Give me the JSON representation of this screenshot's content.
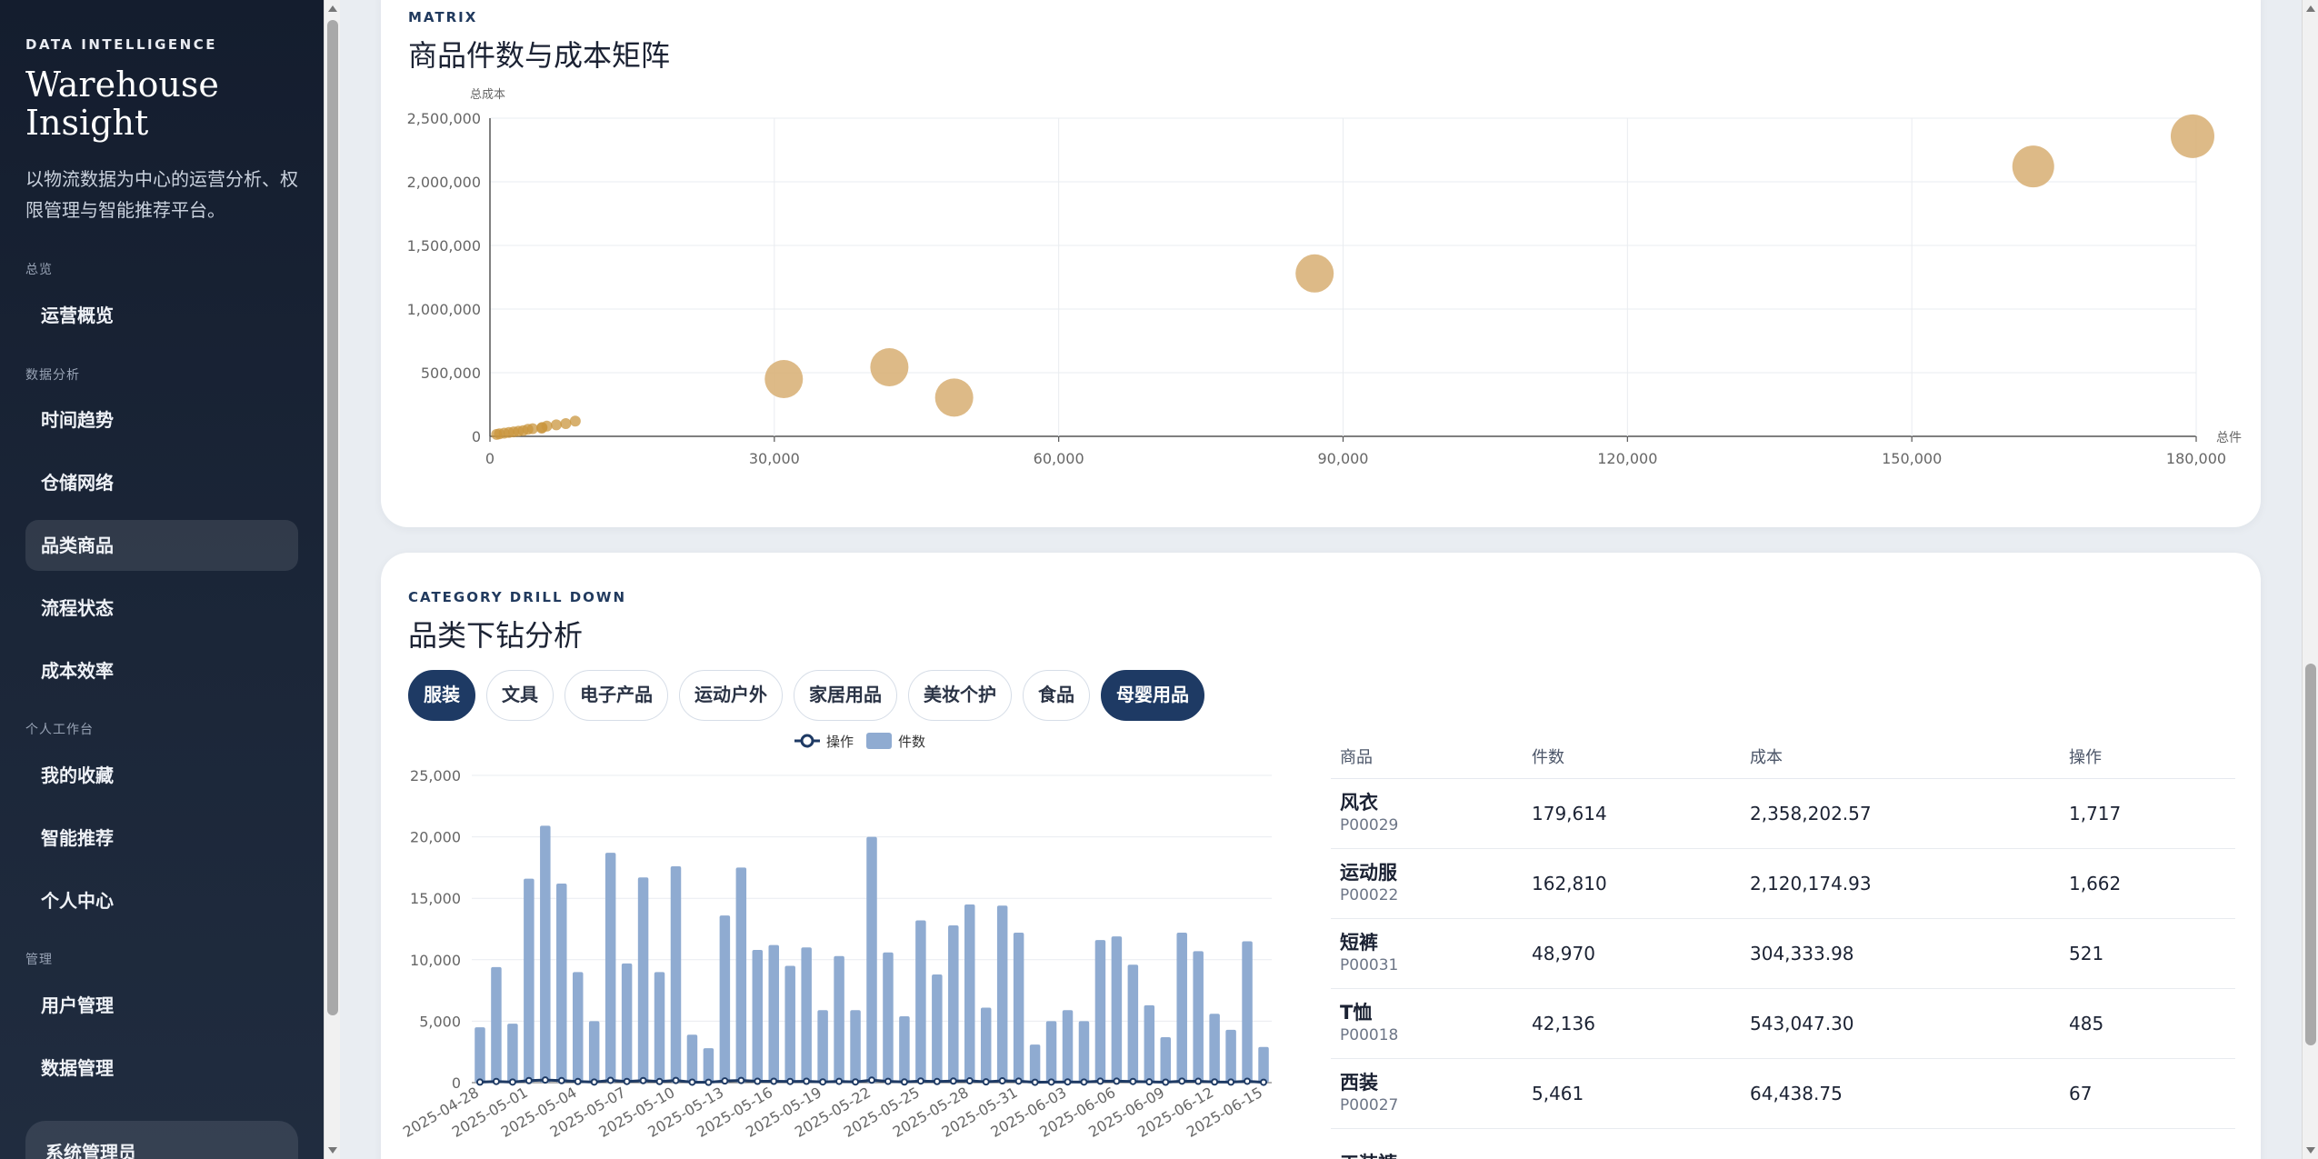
{
  "sidebar": {
    "kicker": "DATA INTELLIGENCE",
    "title": "Warehouse Insight",
    "desc": "以物流数据为中心的运营分析、权限管理与智能推荐平台。",
    "sections": {
      "overview": "总览",
      "analysis": "数据分析",
      "workspace": "个人工作台",
      "admin": "管理"
    },
    "items": {
      "ops": "运营概览",
      "trend": "时间趋势",
      "network": "仓储网络",
      "category": "品类商品",
      "process": "流程状态",
      "cost": "成本效率",
      "favorites": "我的收藏",
      "recommend": "智能推荐",
      "profile": "个人中心",
      "users": "用户管理",
      "data": "数据管理",
      "admin_user": "系统管理员"
    }
  },
  "matrix": {
    "kicker": "MATRIX",
    "title": "商品件数与成本矩阵",
    "y_axis_name": "总成本",
    "x_axis_name": "总件",
    "bubble_color": "#d9b37a"
  },
  "drill": {
    "kicker": "CATEGORY DRILL DOWN",
    "title": "品类下钻分析",
    "chips": [
      "服装",
      "文具",
      "电子产品",
      "运动户外",
      "家居用品",
      "美妆个护",
      "食品",
      "母婴用品"
    ],
    "legend": {
      "line": "操作",
      "bar": "件数"
    },
    "table": {
      "headers": {
        "name": "商品",
        "qty": "件数",
        "cost": "成本",
        "op": "操作"
      },
      "rows": [
        {
          "name": "风衣",
          "code": "P00029",
          "qty": "179,614",
          "cost": "2,358,202.57",
          "op": "1,717"
        },
        {
          "name": "运动服",
          "code": "P00022",
          "qty": "162,810",
          "cost": "2,120,174.93",
          "op": "1,662"
        },
        {
          "name": "短裤",
          "code": "P00031",
          "qty": "48,970",
          "cost": "304,333.98",
          "op": "521"
        },
        {
          "name": "T恤",
          "code": "P00018",
          "qty": "42,136",
          "cost": "543,047.30",
          "op": "485"
        },
        {
          "name": "西装",
          "code": "P00027",
          "qty": "5,461",
          "cost": "64,438.75",
          "op": "67"
        },
        {
          "name": "工装裤",
          "code": "",
          "qty": "",
          "cost": "",
          "op": ""
        }
      ]
    }
  },
  "chart_data": [
    {
      "type": "scatter",
      "title": "商品件数与成本矩阵",
      "xlabel": "总件",
      "ylabel": "总成本",
      "xlim": [
        0,
        180000
      ],
      "ylim": [
        0,
        2500000
      ],
      "x_ticks": [
        "0",
        "30,000",
        "60,000",
        "90,000",
        "120,000",
        "150,000",
        "180,000"
      ],
      "y_ticks": [
        "0",
        "500,000",
        "1,000,000",
        "1,500,000",
        "2,000,000",
        "2,500,000"
      ],
      "grid": true,
      "points": [
        {
          "x": 179614,
          "y": 2358202.57,
          "size": 1
        },
        {
          "x": 162810,
          "y": 2120174.93,
          "size": 0.95
        },
        {
          "x": 87000,
          "y": 1280000,
          "size": 0.85
        },
        {
          "x": 48970,
          "y": 304333.98,
          "size": 0.85
        },
        {
          "x": 42136,
          "y": 543047.3,
          "size": 0.85
        },
        {
          "x": 31000,
          "y": 450000,
          "size": 0.85
        },
        {
          "x": 9000,
          "y": 120000,
          "size": 0.25
        },
        {
          "x": 8000,
          "y": 100000,
          "size": 0.25
        },
        {
          "x": 7000,
          "y": 90000,
          "size": 0.25
        },
        {
          "x": 6000,
          "y": 80000,
          "size": 0.25
        },
        {
          "x": 5500,
          "y": 70000,
          "size": 0.25
        },
        {
          "x": 5461,
          "y": 64438.75,
          "size": 0.25
        },
        {
          "x": 4500,
          "y": 60000,
          "size": 0.25
        },
        {
          "x": 4000,
          "y": 55000,
          "size": 0.25
        },
        {
          "x": 3500,
          "y": 45000,
          "size": 0.25
        },
        {
          "x": 3000,
          "y": 40000,
          "size": 0.25
        },
        {
          "x": 2500,
          "y": 35000,
          "size": 0.25
        },
        {
          "x": 2000,
          "y": 30000,
          "size": 0.25
        },
        {
          "x": 1500,
          "y": 25000,
          "size": 0.25
        },
        {
          "x": 1000,
          "y": 20000,
          "size": 0.25
        },
        {
          "x": 700,
          "y": 15000,
          "size": 0.25
        }
      ]
    },
    {
      "type": "bar",
      "title": "",
      "legend": [
        "操作",
        "件数"
      ],
      "legend_position": "top-center",
      "ylim": [
        0,
        25000
      ],
      "y_ticks": [
        "0",
        "5,000",
        "10,000",
        "15,000",
        "20,000",
        "25,000"
      ],
      "x_tick_labels": [
        "2025-04-28",
        "2025-05-01",
        "2025-05-04",
        "2025-05-07",
        "2025-05-10",
        "2025-05-13",
        "2025-05-16",
        "2025-05-19",
        "2025-05-22",
        "2025-05-25",
        "2025-05-28",
        "2025-05-31",
        "2025-06-03",
        "2025-06-06",
        "2025-06-09",
        "2025-06-12",
        "2025-06-15"
      ],
      "series": [
        {
          "name": "件数",
          "values": [
            4500,
            9400,
            4800,
            16600,
            20900,
            16200,
            9000,
            5000,
            18700,
            9700,
            16700,
            9000,
            17600,
            3900,
            2800,
            13600,
            17500,
            10800,
            11200,
            9500,
            11000,
            5900,
            10300,
            5900,
            20000,
            10600,
            5400,
            13200,
            8800,
            12800,
            14500,
            6100,
            14400,
            12200,
            3100,
            5000,
            5900,
            5000,
            11600,
            11900,
            9600,
            6300,
            3700,
            12200,
            10700,
            5600,
            4300,
            11500,
            2900
          ]
        },
        {
          "name": "操作",
          "values": [
            45,
            94,
            48,
            166,
            209,
            162,
            90,
            50,
            187,
            97,
            167,
            90,
            176,
            39,
            28,
            136,
            175,
            108,
            112,
            95,
            110,
            59,
            103,
            59,
            200,
            106,
            54,
            132,
            88,
            128,
            145,
            61,
            144,
            122,
            31,
            50,
            59,
            50,
            116,
            119,
            96,
            63,
            37,
            122,
            107,
            56,
            43,
            115,
            29
          ]
        }
      ]
    }
  ]
}
